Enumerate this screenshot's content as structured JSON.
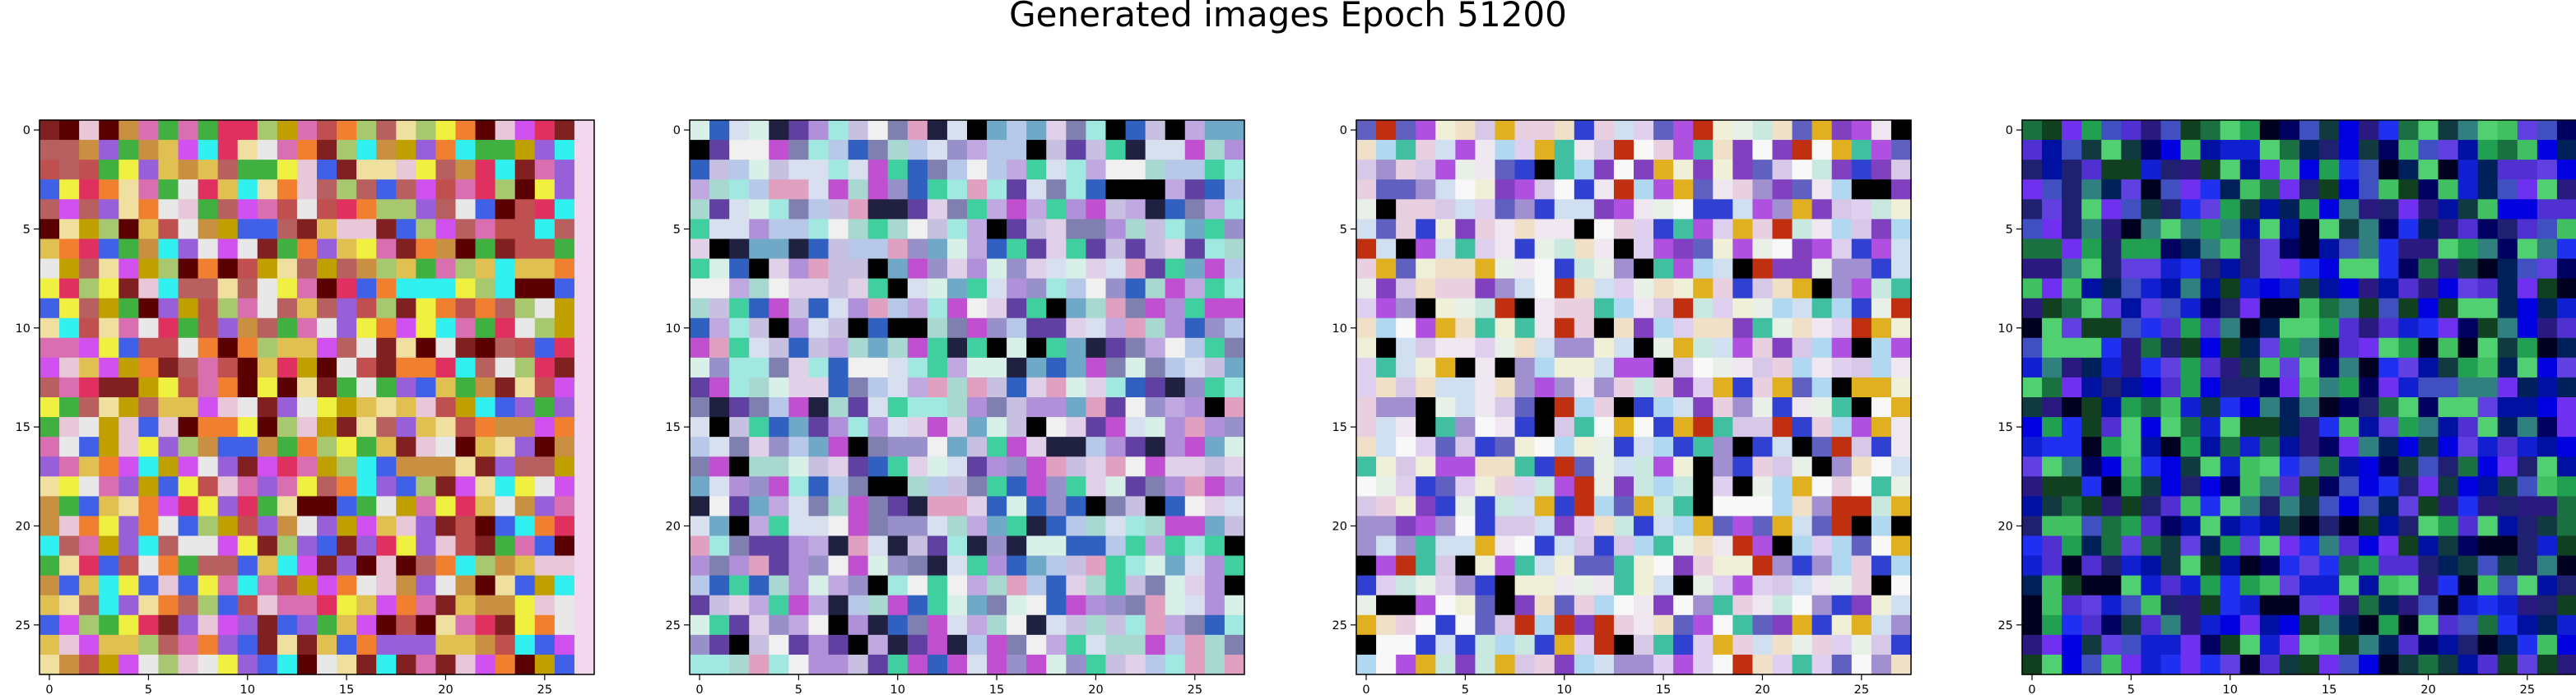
{
  "figure": {
    "title": "Generated images Epoch 51200"
  },
  "chart_data": [
    {
      "type": "heatmap",
      "image_index": 1,
      "grid_size": [
        28,
        28
      ],
      "xlim": [
        -0.5,
        27.5
      ],
      "ylim": [
        27.5,
        -0.5
      ],
      "x_ticks": [
        0,
        5,
        10,
        15,
        20,
        25
      ],
      "y_ticks": [
        0,
        5,
        10,
        15,
        20,
        25
      ],
      "x_tick_labels": [
        "0",
        "5",
        "10",
        "15",
        "20",
        "25"
      ],
      "y_tick_labels": [
        "0",
        "5",
        "10",
        "15",
        "20",
        "25"
      ],
      "palette": [
        "#b86060",
        "#d96fb0",
        "#e0c050",
        "#a8c870",
        "#c89040",
        "#e8c8d8",
        "#c05050",
        "#f0e0a0",
        "#9860d8",
        "#4060e8",
        "#e03060",
        "#40b040",
        "#f0f040",
        "#30f0f0",
        "#e8e8e8",
        "#802020",
        "#5a0000",
        "#d050f0",
        "#f08030",
        "#c0a000"
      ],
      "last_column_color": "#f2d8ee"
    },
    {
      "type": "heatmap",
      "image_index": 2,
      "grid_size": [
        28,
        28
      ],
      "xlim": [
        -0.5,
        27.5
      ],
      "ylim": [
        27.5,
        -0.5
      ],
      "x_ticks": [
        0,
        5,
        10,
        15,
        20,
        25
      ],
      "y_ticks": [
        0,
        5,
        10,
        15,
        20,
        25
      ],
      "x_tick_labels": [
        "0",
        "5",
        "10",
        "15",
        "20",
        "25"
      ],
      "y_tick_labels": [
        "0",
        "5",
        "10",
        "15",
        "20",
        "25"
      ],
      "palette": [
        "#c8c0e0",
        "#b8c8e8",
        "#d8e0f0",
        "#a8d8d0",
        "#c0a8e0",
        "#e0d0e8",
        "#9890c8",
        "#d8f0e8",
        "#70a8c8",
        "#b090d8",
        "#f0f0f0",
        "#8080b0",
        "#40d0a0",
        "#c050d0",
        "#202040",
        "#000000",
        "#6040a0",
        "#3060c0",
        "#e0a0c0",
        "#a0e8e0"
      ]
    },
    {
      "type": "heatmap",
      "image_index": 3,
      "grid_size": [
        28,
        28
      ],
      "xlim": [
        -0.5,
        27.5
      ],
      "ylim": [
        27.5,
        -0.5
      ],
      "x_ticks": [
        0,
        5,
        10,
        15,
        20,
        25
      ],
      "y_ticks": [
        0,
        5,
        10,
        15,
        20,
        25
      ],
      "x_tick_labels": [
        "0",
        "5",
        "10",
        "15",
        "20",
        "25"
      ],
      "y_tick_labels": [
        "0",
        "5",
        "10",
        "15",
        "20",
        "25"
      ],
      "palette": [
        "#e8f0e8",
        "#f0e8f0",
        "#d0e0f0",
        "#f0f0d8",
        "#e0d0f0",
        "#c8e8e0",
        "#f8f8f8",
        "#d8c8e8",
        "#b0d8f0",
        "#e8d0e0",
        "#a090d0",
        "#f0e0c8",
        "#40c0a0",
        "#8040c0",
        "#3040d0",
        "#000000",
        "#e0b020",
        "#c03010",
        "#6060c0",
        "#b050e0"
      ]
    },
    {
      "type": "heatmap",
      "image_index": 4,
      "grid_size": [
        28,
        28
      ],
      "xlim": [
        -0.5,
        27.5
      ],
      "ylim": [
        27.5,
        -0.5
      ],
      "x_ticks": [
        0,
        5,
        10,
        15,
        20,
        25
      ],
      "y_ticks": [
        0,
        5,
        10,
        15,
        20,
        25
      ],
      "x_tick_labels": [
        "0",
        "5",
        "10",
        "15",
        "20",
        "25"
      ],
      "y_tick_labels": [
        "0",
        "5",
        "10",
        "15",
        "20",
        "25"
      ],
      "palette": [
        "#0010a0",
        "#1020d0",
        "#2030f0",
        "#000060",
        "#000020",
        "#2a1a80",
        "#5030d0",
        "#00205a",
        "#103a40",
        "#1a7040",
        "#20a050",
        "#40c060",
        "#50d070",
        "#4050c0",
        "#6040e0",
        "#7030f0",
        "#0000e0",
        "#202070",
        "#104020",
        "#308080"
      ]
    }
  ]
}
